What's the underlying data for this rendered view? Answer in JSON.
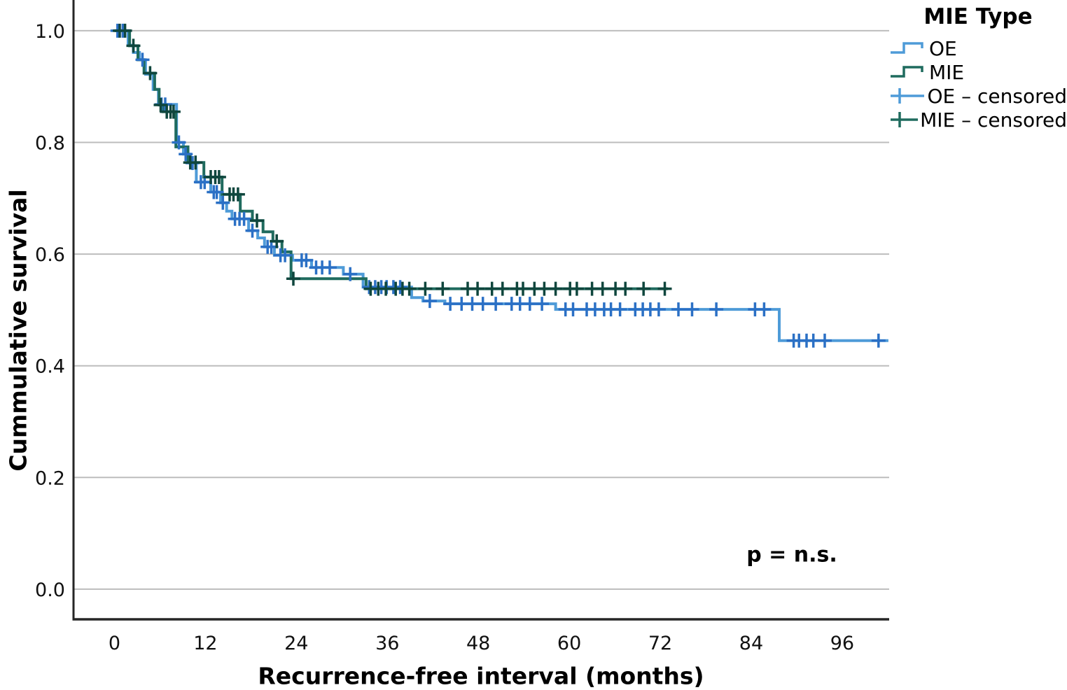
{
  "chart_data": {
    "type": "line",
    "subtype": "kaplan-meier-step-survival",
    "title": "",
    "xlabel": "Recurrence-free interval (months)",
    "ylabel": "Cummulative survival",
    "annotation": "p = n.s.",
    "x_ticks": [
      0,
      12,
      24,
      36,
      48,
      60,
      72,
      84,
      96
    ],
    "y_ticks": [
      "0.0",
      "0.2",
      "0.4",
      "0.6",
      "0.8",
      "1.0"
    ],
    "xlim": [
      -5.4,
      102.2
    ],
    "ylim": [
      -0.054,
      1.055
    ],
    "grid": "horizontal",
    "grid_color": "#bdbdbd",
    "axis_color": "#262626",
    "tick_label_color": "#111111",
    "legend": {
      "title": "MIE Type",
      "position": "top-right",
      "items": [
        {
          "label": "OE",
          "glyph": "step-line",
          "series": "OE"
        },
        {
          "label": "MIE",
          "glyph": "step-line",
          "series": "MIE"
        },
        {
          "label": "OE – censored",
          "glyph": "plus-line",
          "series": "OE"
        },
        {
          "label": "MIE – censored",
          "glyph": "plus-line",
          "series": "MIE"
        }
      ]
    },
    "series": [
      {
        "name": "OE",
        "line_color": "#4e9bd8",
        "marker_color": "#2b70c5",
        "start": [
          0,
          1.0
        ],
        "drops": [
          [
            1.8,
            0.974
          ],
          [
            2.5,
            0.961
          ],
          [
            3.3,
            0.948
          ],
          [
            4.1,
            0.922
          ],
          [
            5.1,
            0.895
          ],
          [
            5.8,
            0.868
          ],
          [
            8.2,
            0.8
          ],
          [
            9.1,
            0.779
          ],
          [
            10.0,
            0.763
          ],
          [
            10.8,
            0.729
          ],
          [
            12.7,
            0.711
          ],
          [
            14.0,
            0.692
          ],
          [
            14.8,
            0.677
          ],
          [
            15.5,
            0.663
          ],
          [
            17.7,
            0.642
          ],
          [
            18.9,
            0.629
          ],
          [
            19.8,
            0.613
          ],
          [
            21.1,
            0.598
          ],
          [
            23.5,
            0.589
          ],
          [
            26.0,
            0.576
          ],
          [
            30.2,
            0.564
          ],
          [
            32.8,
            0.541
          ],
          [
            39.2,
            0.522
          ],
          [
            40.7,
            0.516
          ],
          [
            43.6,
            0.511
          ],
          [
            58.2,
            0.501
          ],
          [
            87.7,
            0.445
          ]
        ],
        "end_month": 102.1
      },
      {
        "name": "MIE",
        "line_color": "#1f6b5e",
        "marker_color": "#0f463d",
        "start": [
          0,
          1.0
        ],
        "drops": [
          [
            2.0,
            0.973
          ],
          [
            3.1,
            0.948
          ],
          [
            3.9,
            0.924
          ],
          [
            5.3,
            0.895
          ],
          [
            5.9,
            0.867
          ],
          [
            6.4,
            0.855
          ],
          [
            8.1,
            0.792
          ],
          [
            9.7,
            0.764
          ],
          [
            11.8,
            0.738
          ],
          [
            14.2,
            0.707
          ],
          [
            16.6,
            0.677
          ],
          [
            18.2,
            0.66
          ],
          [
            19.6,
            0.64
          ],
          [
            20.9,
            0.623
          ],
          [
            22.1,
            0.604
          ],
          [
            23.3,
            0.556
          ],
          [
            33.2,
            0.538
          ]
        ],
        "end_month": 73.0
      }
    ],
    "censored": {
      "OE": [
        [
          0.4,
          1.0
        ],
        [
          1.1,
          1.0
        ],
        [
          3.7,
          0.948
        ],
        [
          6.2,
          0.868
        ],
        [
          6.7,
          0.868
        ],
        [
          8.5,
          0.8
        ],
        [
          9.4,
          0.779
        ],
        [
          10.3,
          0.763
        ],
        [
          11.4,
          0.729
        ],
        [
          11.9,
          0.729
        ],
        [
          13.1,
          0.711
        ],
        [
          13.5,
          0.711
        ],
        [
          14.3,
          0.692
        ],
        [
          15.9,
          0.663
        ],
        [
          16.5,
          0.663
        ],
        [
          17.1,
          0.663
        ],
        [
          18.2,
          0.642
        ],
        [
          20.2,
          0.613
        ],
        [
          20.7,
          0.613
        ],
        [
          21.9,
          0.598
        ],
        [
          22.5,
          0.598
        ],
        [
          24.7,
          0.589
        ],
        [
          25.3,
          0.589
        ],
        [
          26.6,
          0.576
        ],
        [
          27.4,
          0.576
        ],
        [
          28.4,
          0.576
        ],
        [
          31.1,
          0.564
        ],
        [
          33.6,
          0.541
        ],
        [
          34.4,
          0.541
        ],
        [
          35.2,
          0.541
        ],
        [
          35.9,
          0.541
        ],
        [
          36.8,
          0.541
        ],
        [
          37.7,
          0.541
        ],
        [
          41.6,
          0.516
        ],
        [
          44.3,
          0.511
        ],
        [
          45.8,
          0.511
        ],
        [
          47.2,
          0.511
        ],
        [
          48.6,
          0.511
        ],
        [
          50.3,
          0.511
        ],
        [
          52.4,
          0.511
        ],
        [
          53.5,
          0.511
        ],
        [
          54.8,
          0.511
        ],
        [
          56.4,
          0.511
        ],
        [
          59.5,
          0.501
        ],
        [
          60.5,
          0.501
        ],
        [
          62.3,
          0.501
        ],
        [
          63.4,
          0.501
        ],
        [
          64.6,
          0.501
        ],
        [
          65.5,
          0.501
        ],
        [
          66.7,
          0.501
        ],
        [
          68.7,
          0.501
        ],
        [
          69.7,
          0.501
        ],
        [
          70.7,
          0.501
        ],
        [
          71.8,
          0.501
        ],
        [
          74.4,
          0.501
        ],
        [
          76.2,
          0.501
        ],
        [
          79.4,
          0.501
        ],
        [
          84.5,
          0.501
        ],
        [
          85.7,
          0.501
        ],
        [
          89.6,
          0.445
        ],
        [
          90.3,
          0.445
        ],
        [
          91.3,
          0.445
        ],
        [
          92.2,
          0.445
        ],
        [
          93.7,
          0.445
        ],
        [
          100.8,
          0.445
        ]
      ],
      "MIE": [
        [
          0.7,
          1.0
        ],
        [
          1.4,
          1.0
        ],
        [
          2.5,
          0.973
        ],
        [
          4.7,
          0.924
        ],
        [
          6.1,
          0.867
        ],
        [
          6.9,
          0.855
        ],
        [
          7.4,
          0.855
        ],
        [
          7.8,
          0.855
        ],
        [
          10.0,
          0.764
        ],
        [
          10.7,
          0.764
        ],
        [
          12.7,
          0.738
        ],
        [
          13.3,
          0.738
        ],
        [
          13.8,
          0.738
        ],
        [
          15.2,
          0.707
        ],
        [
          15.7,
          0.707
        ],
        [
          16.3,
          0.707
        ],
        [
          18.8,
          0.66
        ],
        [
          21.4,
          0.623
        ],
        [
          23.6,
          0.556
        ],
        [
          33.8,
          0.538
        ],
        [
          34.8,
          0.538
        ],
        [
          35.8,
          0.538
        ],
        [
          37.1,
          0.538
        ],
        [
          38.0,
          0.538
        ],
        [
          38.9,
          0.538
        ],
        [
          41.0,
          0.538
        ],
        [
          43.3,
          0.538
        ],
        [
          46.6,
          0.538
        ],
        [
          47.9,
          0.538
        ],
        [
          49.8,
          0.538
        ],
        [
          51.2,
          0.538
        ],
        [
          53.1,
          0.538
        ],
        [
          53.9,
          0.538
        ],
        [
          55.4,
          0.538
        ],
        [
          56.7,
          0.538
        ],
        [
          58.2,
          0.538
        ],
        [
          60.1,
          0.538
        ],
        [
          61.0,
          0.538
        ],
        [
          63.0,
          0.538
        ],
        [
          64.4,
          0.538
        ],
        [
          66.1,
          0.538
        ],
        [
          67.4,
          0.538
        ],
        [
          69.8,
          0.538
        ],
        [
          72.6,
          0.538
        ]
      ]
    }
  }
}
